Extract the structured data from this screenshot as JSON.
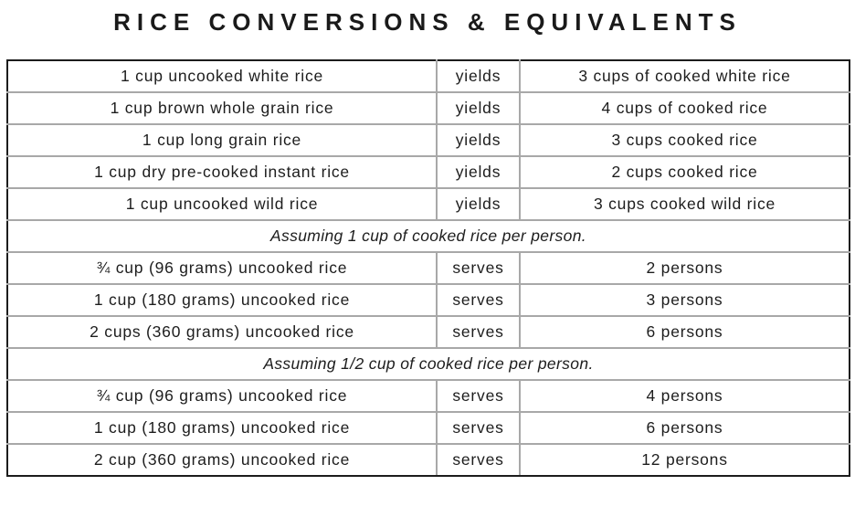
{
  "title": "RICE CONVERSIONS & EQUIVALENTS",
  "colors": {
    "outer_border": "#1c1c1c",
    "inner_border": "#a8a8a8",
    "text": "#1d1d1d",
    "background": "#ffffff"
  },
  "table": {
    "rows": [
      {
        "type": "data",
        "left": "1 cup uncooked white rice",
        "verb": "yields",
        "right": "3 cups of cooked white rice"
      },
      {
        "type": "data",
        "left": "1 cup brown whole grain rice",
        "verb": "yields",
        "right": "4 cups of cooked rice"
      },
      {
        "type": "data",
        "left": "1 cup long grain rice",
        "verb": "yields",
        "right": "3 cups cooked rice"
      },
      {
        "type": "data",
        "left": "1 cup dry pre-cooked instant rice",
        "verb": "yields",
        "right": "2 cups cooked rice"
      },
      {
        "type": "data",
        "left": "1 cup uncooked wild rice",
        "verb": "yields",
        "right": "3 cups cooked wild rice"
      },
      {
        "type": "note",
        "text": "Assuming 1 cup of cooked rice per person."
      },
      {
        "type": "data",
        "left": "¾ cup (96 grams) uncooked rice",
        "verb": "serves",
        "right": "2 persons"
      },
      {
        "type": "data",
        "left": "1 cup (180 grams) uncooked rice",
        "verb": "serves",
        "right": "3 persons"
      },
      {
        "type": "data",
        "left": "2 cups (360 grams) uncooked rice",
        "verb": "serves",
        "right": "6 persons"
      },
      {
        "type": "note",
        "text": "Assuming 1/2 cup of cooked rice per person."
      },
      {
        "type": "data",
        "left": "¾ cup (96 grams) uncooked rice",
        "verb": "serves",
        "right": "4 persons"
      },
      {
        "type": "data",
        "left": "1 cup (180 grams) uncooked rice",
        "verb": "serves",
        "right": "6 persons"
      },
      {
        "type": "data",
        "left": "2 cup (360 grams) uncooked rice",
        "verb": "serves",
        "right": "12 persons"
      }
    ]
  }
}
